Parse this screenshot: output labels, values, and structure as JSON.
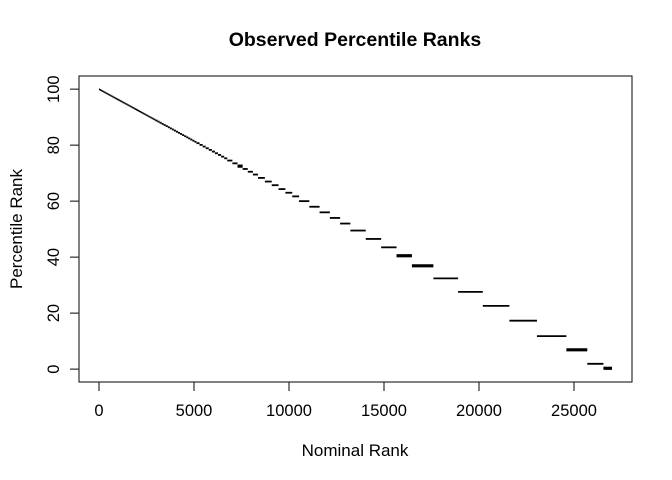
{
  "window": {
    "background": "#ffffff"
  },
  "chart_data": {
    "type": "line",
    "subtype": "step-function",
    "title": "Observed Percentile Ranks",
    "xlabel": "Nominal Rank",
    "ylabel": "Percentile Rank",
    "x_ticks": [
      0,
      5000,
      10000,
      15000,
      20000,
      25000
    ],
    "y_ticks": [
      0,
      20,
      40,
      60,
      80,
      100
    ],
    "xlim": [
      -1053,
      28053
    ],
    "ylim": [
      -4.6,
      104.7
    ],
    "n_points": 27000,
    "line_color": "#000000",
    "background": "#ffffff",
    "grid": false,
    "legend": false,
    "description": "Percentile rank (0-100) versus nominal rank (0-27000); monotone decreasing step function, nearly continuous diagonal at top-left, progressively wider horizontal tie-group steps toward bottom-right; steps listed as [x_start, x_end, percentile, bold_flag]",
    "steps": [
      [
        0,
        54,
        99.9
      ],
      [
        54,
        108,
        99.7
      ],
      [
        108,
        162,
        99.5
      ],
      [
        162,
        216,
        99.3
      ],
      [
        216,
        270,
        99.1
      ],
      [
        270,
        324,
        98.9
      ],
      [
        324,
        378,
        98.7
      ],
      [
        378,
        432,
        98.5
      ],
      [
        432,
        486,
        98.3
      ],
      [
        486,
        540,
        98.1
      ],
      [
        540,
        594,
        97.9
      ],
      [
        594,
        648,
        97.7
      ],
      [
        648,
        702,
        97.5
      ],
      [
        702,
        756,
        97.3
      ],
      [
        756,
        810,
        97.1
      ],
      [
        810,
        864,
        96.9
      ],
      [
        864,
        918,
        96.7
      ],
      [
        918,
        972,
        96.5
      ],
      [
        972,
        1026,
        96.3
      ],
      [
        1026,
        1080,
        96.1
      ],
      [
        1080,
        1134,
        95.9
      ],
      [
        1134,
        1188,
        95.7
      ],
      [
        1188,
        1242,
        95.5
      ],
      [
        1242,
        1296,
        95.3
      ],
      [
        1296,
        1350,
        95.1
      ],
      [
        1350,
        1404,
        94.9
      ],
      [
        1404,
        1458,
        94.7
      ],
      [
        1458,
        1512,
        94.5
      ],
      [
        1512,
        1566,
        94.3
      ],
      [
        1566,
        1620,
        94.1
      ],
      [
        1620,
        1674,
        93.9
      ],
      [
        1674,
        1728,
        93.7
      ],
      [
        1728,
        1782,
        93.5
      ],
      [
        1782,
        1836,
        93.3
      ],
      [
        1836,
        1890,
        93.1
      ],
      [
        1890,
        1944,
        92.9
      ],
      [
        1944,
        1998,
        92.7
      ],
      [
        1998,
        2052,
        92.5
      ],
      [
        2052,
        2106,
        92.3
      ],
      [
        2106,
        2160,
        92.1
      ],
      [
        2160,
        2214,
        91.9
      ],
      [
        2214,
        2268,
        91.7
      ],
      [
        2268,
        2322,
        91.5
      ],
      [
        2322,
        2376,
        91.3
      ],
      [
        2376,
        2430,
        91.1
      ],
      [
        2430,
        2484,
        90.9
      ],
      [
        2484,
        2538,
        90.7
      ],
      [
        2538,
        2592,
        90.5
      ],
      [
        2592,
        2646,
        90.3
      ],
      [
        2646,
        2700,
        90.1
      ],
      [
        2700,
        2754,
        89.9
      ],
      [
        2754,
        2808,
        89.7
      ],
      [
        2808,
        2862,
        89.5
      ],
      [
        2862,
        2916,
        89.3
      ],
      [
        2916,
        2970,
        89.1
      ],
      [
        2970,
        3078,
        88.8
      ],
      [
        3078,
        3186,
        88.4
      ],
      [
        3186,
        3294,
        88.0
      ],
      [
        3294,
        3402,
        87.6
      ],
      [
        3402,
        3510,
        87.2
      ],
      [
        3510,
        3618,
        86.8
      ],
      [
        3618,
        3726,
        86.4
      ],
      [
        3726,
        3834,
        86.0
      ],
      [
        3834,
        3942,
        85.6
      ],
      [
        3942,
        4050,
        85.2
      ],
      [
        4050,
        4158,
        84.8
      ],
      [
        4158,
        4266,
        84.4
      ],
      [
        4266,
        4374,
        84.0
      ],
      [
        4374,
        4482,
        83.6
      ],
      [
        4482,
        4590,
        83.2
      ],
      [
        4590,
        4698,
        82.8
      ],
      [
        4698,
        4806,
        82.4
      ],
      [
        4806,
        4914,
        82.0
      ],
      [
        4914,
        5022,
        81.6
      ],
      [
        5022,
        5130,
        81.2
      ],
      [
        5130,
        5292,
        80.7
      ],
      [
        5292,
        5454,
        80.1
      ],
      [
        5454,
        5616,
        79.5
      ],
      [
        5616,
        5778,
        78.9
      ],
      [
        5778,
        5940,
        78.3
      ],
      [
        5940,
        6102,
        77.7
      ],
      [
        6102,
        6264,
        77.1
      ],
      [
        6264,
        6426,
        76.5
      ],
      [
        6426,
        6588,
        75.9
      ],
      [
        6588,
        6750,
        75.3
      ],
      [
        6750,
        7020,
        74.5
      ],
      [
        7020,
        7290,
        73.5
      ],
      [
        7290,
        7560,
        72.5,
        1
      ],
      [
        7560,
        7830,
        71.5
      ],
      [
        7830,
        8100,
        70.5
      ],
      [
        8100,
        8370,
        69.5
      ],
      [
        8370,
        8730,
        68.3
      ],
      [
        8730,
        9090,
        67.0
      ],
      [
        9090,
        9450,
        65.7
      ],
      [
        9450,
        9810,
        64.3
      ],
      [
        9810,
        10170,
        63.0
      ],
      [
        10170,
        10530,
        61.7
      ],
      [
        10530,
        11070,
        60.0
      ],
      [
        11070,
        11610,
        58.0
      ],
      [
        11610,
        12150,
        56.0
      ],
      [
        12150,
        12690,
        54.0
      ],
      [
        12690,
        13230,
        52.0
      ],
      [
        13230,
        14040,
        49.5
      ],
      [
        14040,
        14850,
        46.5
      ],
      [
        14850,
        15660,
        43.5
      ],
      [
        15660,
        16470,
        40.5,
        1
      ],
      [
        16470,
        17600,
        36.9,
        1
      ],
      [
        17600,
        18900,
        32.4
      ],
      [
        18900,
        20200,
        27.6
      ],
      [
        20200,
        21600,
        22.6
      ],
      [
        21600,
        23050,
        17.3
      ],
      [
        23050,
        24600,
        11.8
      ],
      [
        24600,
        25700,
        6.9,
        1
      ],
      [
        25700,
        26550,
        1.9
      ],
      [
        26550,
        27000,
        0.3,
        1
      ]
    ]
  }
}
